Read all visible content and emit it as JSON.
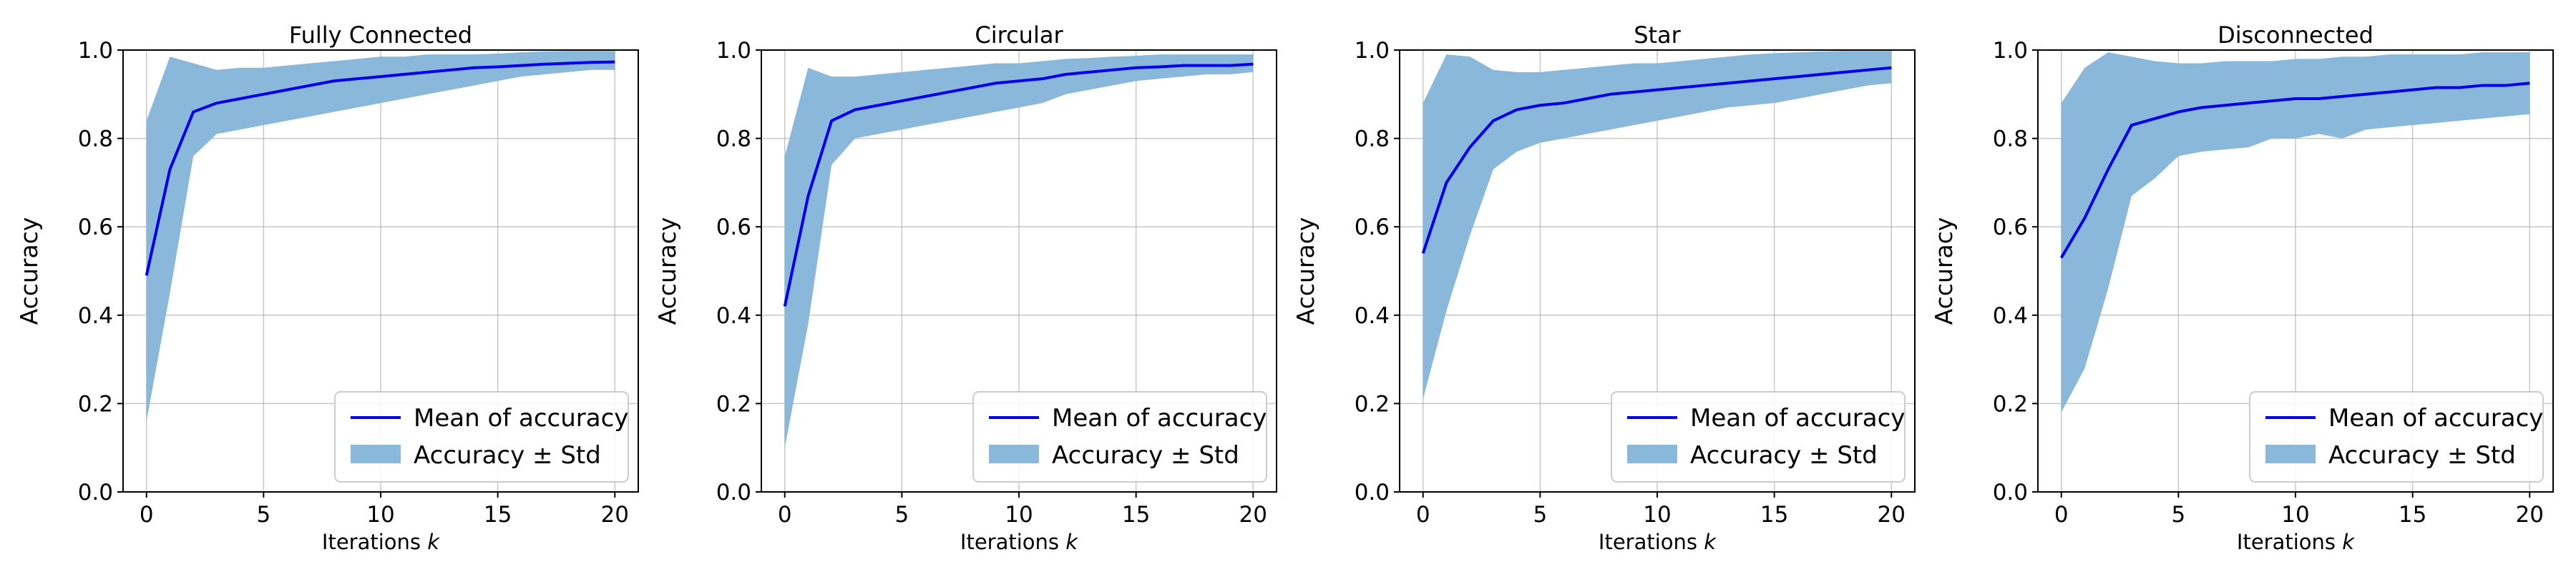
{
  "figure": {
    "legend_labels": [
      "Mean of accuracy",
      "Accuracy ± Std"
    ]
  },
  "chart_data": [
    {
      "type": "line",
      "title": "Fully Connected",
      "xlabel": "Iterations k",
      "ylabel": "Accuracy",
      "xlim": [
        -1,
        21
      ],
      "ylim": [
        0.0,
        1.0
      ],
      "xticks": [
        0,
        5,
        10,
        15,
        20
      ],
      "yticks": [
        0.0,
        0.2,
        0.4,
        0.6,
        0.8,
        1.0
      ],
      "grid": true,
      "legend_position": "lower-right",
      "x": [
        0,
        1,
        2,
        3,
        4,
        5,
        6,
        7,
        8,
        9,
        10,
        11,
        12,
        13,
        14,
        15,
        16,
        17,
        18,
        19,
        20
      ],
      "series": [
        {
          "name": "Mean of accuracy",
          "kind": "line",
          "color": "#0000ee",
          "values": [
            0.49,
            0.73,
            0.86,
            0.88,
            0.89,
            0.9,
            0.91,
            0.92,
            0.93,
            0.935,
            0.94,
            0.945,
            0.95,
            0.955,
            0.96,
            0.962,
            0.965,
            0.968,
            0.97,
            0.972,
            0.973
          ]
        },
        {
          "name": "Accuracy ± Std",
          "kind": "band",
          "color": "#8ab8da",
          "lower": [
            0.16,
            0.45,
            0.76,
            0.81,
            0.82,
            0.83,
            0.84,
            0.85,
            0.86,
            0.87,
            0.88,
            0.89,
            0.9,
            0.91,
            0.92,
            0.93,
            0.94,
            0.945,
            0.95,
            0.955,
            0.955
          ],
          "upper": [
            0.84,
            0.985,
            0.97,
            0.955,
            0.96,
            0.96,
            0.965,
            0.97,
            0.975,
            0.98,
            0.985,
            0.985,
            0.99,
            0.99,
            0.99,
            0.992,
            0.995,
            0.997,
            0.998,
            0.998,
            0.998
          ]
        }
      ]
    },
    {
      "type": "line",
      "title": "Circular",
      "xlabel": "Iterations k",
      "ylabel": "Accuracy",
      "xlim": [
        -1,
        21
      ],
      "ylim": [
        0.0,
        1.0
      ],
      "xticks": [
        0,
        5,
        10,
        15,
        20
      ],
      "yticks": [
        0.0,
        0.2,
        0.4,
        0.6,
        0.8,
        1.0
      ],
      "grid": true,
      "legend_position": "lower-right",
      "x": [
        0,
        1,
        2,
        3,
        4,
        5,
        6,
        7,
        8,
        9,
        10,
        11,
        12,
        13,
        14,
        15,
        16,
        17,
        18,
        19,
        20
      ],
      "series": [
        {
          "name": "Mean of accuracy",
          "kind": "line",
          "color": "#0000ee",
          "values": [
            0.42,
            0.67,
            0.84,
            0.865,
            0.875,
            0.885,
            0.895,
            0.905,
            0.915,
            0.925,
            0.93,
            0.935,
            0.945,
            0.95,
            0.955,
            0.96,
            0.962,
            0.965,
            0.965,
            0.965,
            0.968
          ]
        },
        {
          "name": "Accuracy ± Std",
          "kind": "band",
          "color": "#8ab8da",
          "lower": [
            0.1,
            0.38,
            0.74,
            0.8,
            0.81,
            0.82,
            0.83,
            0.84,
            0.85,
            0.86,
            0.87,
            0.88,
            0.9,
            0.91,
            0.92,
            0.93,
            0.935,
            0.94,
            0.945,
            0.945,
            0.95
          ],
          "upper": [
            0.76,
            0.96,
            0.94,
            0.94,
            0.945,
            0.95,
            0.955,
            0.96,
            0.965,
            0.97,
            0.97,
            0.975,
            0.98,
            0.982,
            0.985,
            0.987,
            0.99,
            0.99,
            0.99,
            0.99,
            0.99
          ]
        }
      ]
    },
    {
      "type": "line",
      "title": "Star",
      "xlabel": "Iterations k",
      "ylabel": "Accuracy",
      "xlim": [
        -1,
        21
      ],
      "ylim": [
        0.0,
        1.0
      ],
      "xticks": [
        0,
        5,
        10,
        15,
        20
      ],
      "yticks": [
        0.0,
        0.2,
        0.4,
        0.6,
        0.8,
        1.0
      ],
      "grid": true,
      "legend_position": "lower-right",
      "x": [
        0,
        1,
        2,
        3,
        4,
        5,
        6,
        7,
        8,
        9,
        10,
        11,
        12,
        13,
        14,
        15,
        16,
        17,
        18,
        19,
        20
      ],
      "series": [
        {
          "name": "Mean of accuracy",
          "kind": "line",
          "color": "#0000ee",
          "values": [
            0.54,
            0.7,
            0.78,
            0.84,
            0.865,
            0.875,
            0.88,
            0.89,
            0.9,
            0.905,
            0.91,
            0.915,
            0.92,
            0.925,
            0.93,
            0.935,
            0.94,
            0.945,
            0.95,
            0.955,
            0.96
          ]
        },
        {
          "name": "Accuracy ± Std",
          "kind": "band",
          "color": "#8ab8da",
          "lower": [
            0.21,
            0.41,
            0.58,
            0.73,
            0.77,
            0.79,
            0.8,
            0.81,
            0.82,
            0.83,
            0.84,
            0.85,
            0.86,
            0.87,
            0.875,
            0.88,
            0.89,
            0.9,
            0.91,
            0.92,
            0.925
          ],
          "upper": [
            0.88,
            0.99,
            0.985,
            0.955,
            0.95,
            0.95,
            0.955,
            0.96,
            0.965,
            0.97,
            0.97,
            0.975,
            0.98,
            0.985,
            0.99,
            0.993,
            0.995,
            0.997,
            0.998,
            0.998,
            0.998
          ]
        }
      ]
    },
    {
      "type": "line",
      "title": "Disconnected",
      "xlabel": "Iterations k",
      "ylabel": "Accuracy",
      "xlim": [
        -1,
        21
      ],
      "ylim": [
        0.0,
        1.0
      ],
      "xticks": [
        0,
        5,
        10,
        15,
        20
      ],
      "yticks": [
        0.0,
        0.2,
        0.4,
        0.6,
        0.8,
        1.0
      ],
      "grid": true,
      "legend_position": "lower-right",
      "x": [
        0,
        1,
        2,
        3,
        4,
        5,
        6,
        7,
        8,
        9,
        10,
        11,
        12,
        13,
        14,
        15,
        16,
        17,
        18,
        19,
        20
      ],
      "series": [
        {
          "name": "Mean of accuracy",
          "kind": "line",
          "color": "#0000ee",
          "values": [
            0.53,
            0.62,
            0.73,
            0.83,
            0.845,
            0.86,
            0.87,
            0.875,
            0.88,
            0.885,
            0.89,
            0.89,
            0.895,
            0.9,
            0.905,
            0.91,
            0.915,
            0.915,
            0.92,
            0.92,
            0.925
          ]
        },
        {
          "name": "Accuracy ± Std",
          "kind": "band",
          "color": "#8ab8da",
          "lower": [
            0.18,
            0.28,
            0.46,
            0.67,
            0.71,
            0.76,
            0.77,
            0.775,
            0.78,
            0.8,
            0.8,
            0.81,
            0.8,
            0.82,
            0.825,
            0.83,
            0.835,
            0.84,
            0.845,
            0.85,
            0.855
          ],
          "upper": [
            0.88,
            0.96,
            0.995,
            0.985,
            0.975,
            0.97,
            0.97,
            0.975,
            0.975,
            0.975,
            0.98,
            0.98,
            0.985,
            0.985,
            0.99,
            0.99,
            0.99,
            0.99,
            0.995,
            0.995,
            0.995
          ]
        }
      ]
    }
  ]
}
